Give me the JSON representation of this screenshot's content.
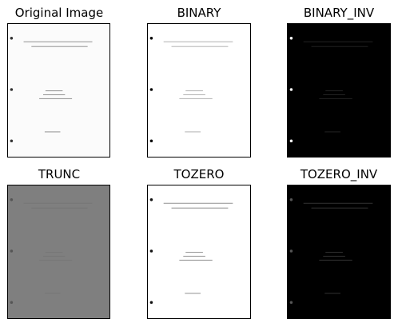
{
  "panels": [
    {
      "title": "Original Image",
      "bg": "#fbfbfb",
      "fg": "#9a9a9a",
      "hole": "#333333"
    },
    {
      "title": "BINARY",
      "bg": "#ffffff",
      "fg": "#b8b8b8",
      "hole": "#000000"
    },
    {
      "title": "BINARY_INV",
      "bg": "#000000",
      "fg": "#202020",
      "hole": "#ffffff"
    },
    {
      "title": "TRUNC",
      "bg": "#7f7f7f",
      "fg": "#777777",
      "hole": "#555555"
    },
    {
      "title": "TOZERO",
      "bg": "#ffffff",
      "fg": "#9a9a9a",
      "hole": "#111111"
    },
    {
      "title": "TOZERO_INV",
      "bg": "#000000",
      "fg": "#2e2e2e",
      "hole": "#555555"
    }
  ]
}
